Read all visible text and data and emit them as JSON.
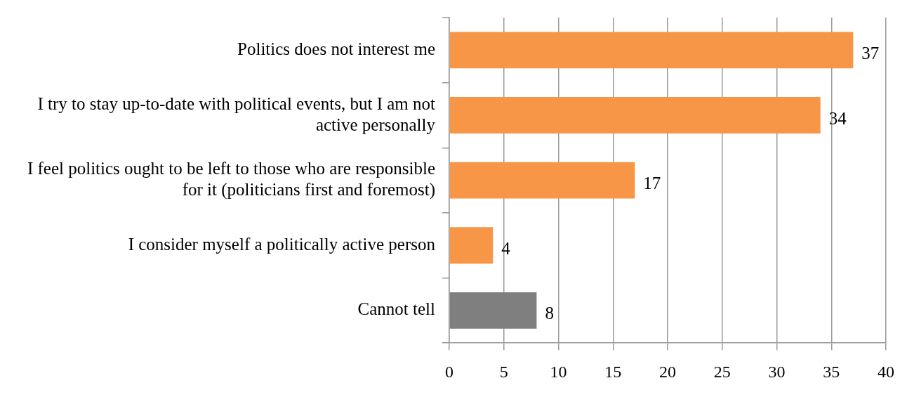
{
  "chart_data": {
    "type": "bar",
    "orientation": "horizontal",
    "categories": [
      "Politics does not interest me",
      "I try to stay up-to-date with political events, but I am not active personally",
      "I feel politics ought to be left to those who are responsible for it (politicians first and foremost)",
      "I consider myself a politically active person",
      "Cannot tell"
    ],
    "values": [
      37,
      34,
      17,
      4,
      8
    ],
    "colors": [
      "#f79646",
      "#f79646",
      "#f79646",
      "#f79646",
      "#7f7f7f"
    ],
    "xlim": [
      0,
      40
    ],
    "xticks": [
      0,
      5,
      10,
      15,
      20,
      25,
      30,
      35,
      40
    ],
    "grid": "x",
    "legend": false,
    "data_labels": true
  }
}
